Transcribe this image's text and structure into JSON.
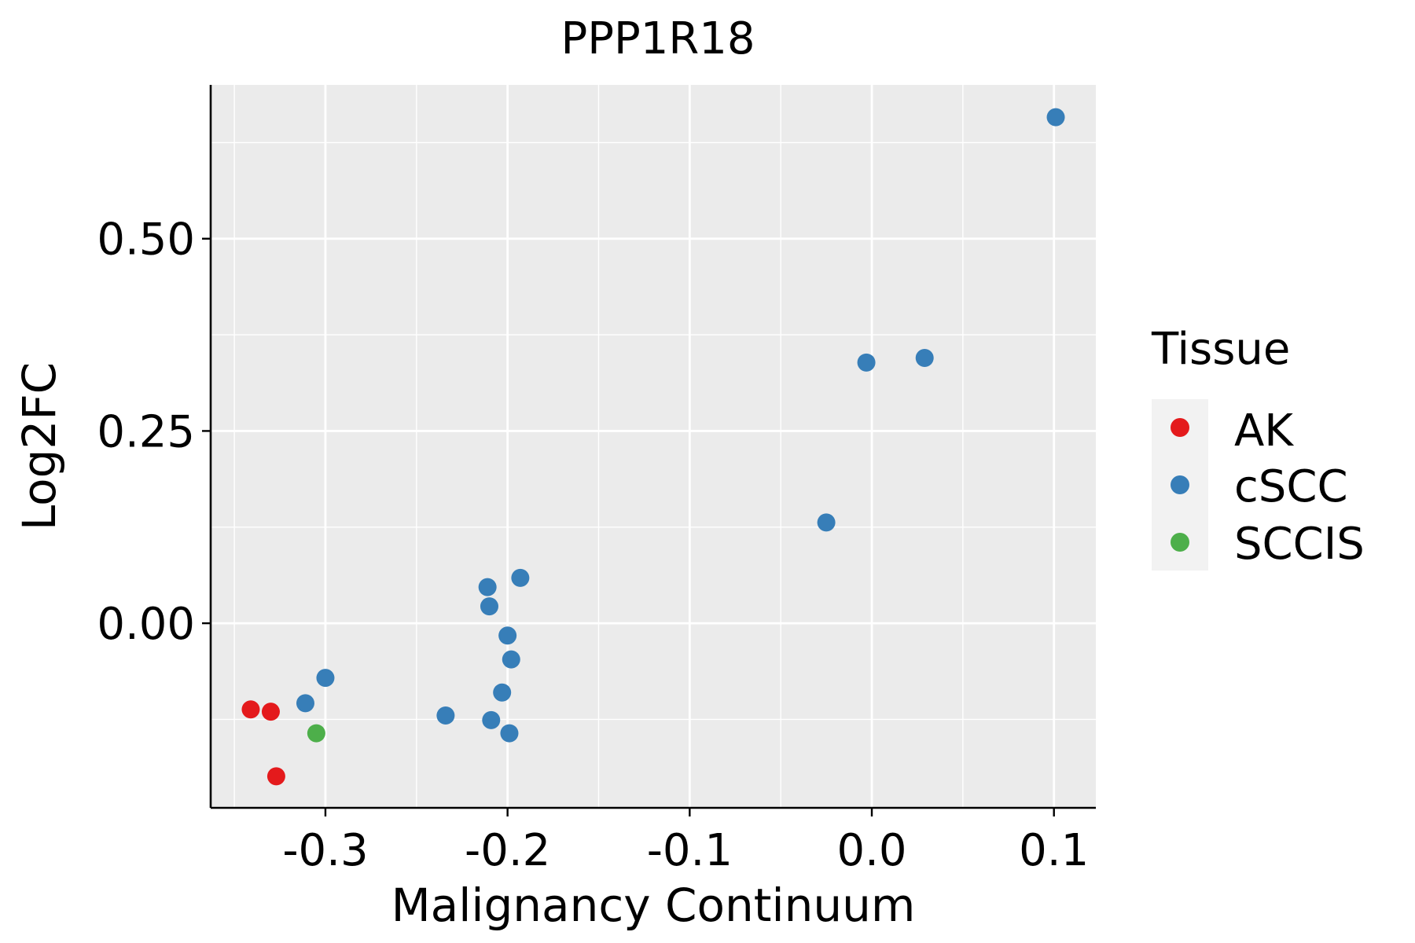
{
  "chart_data": {
    "type": "scatter",
    "title": "PPP1R18",
    "xlabel": "Malignancy Continuum",
    "ylabel": "Log2FC",
    "xlim": [
      -0.363,
      0.123
    ],
    "ylim": [
      -0.24,
      0.7
    ],
    "xticks": [
      -0.3,
      -0.2,
      -0.1,
      0.0,
      0.1
    ],
    "xtick_labels": [
      "-0.3",
      "-0.2",
      "-0.1",
      "0.0",
      "0.1"
    ],
    "yticks": [
      0.0,
      0.25,
      0.5
    ],
    "ytick_labels": [
      "0.00",
      "0.25",
      "0.50"
    ],
    "grid": true,
    "legend": {
      "title": "Tissue",
      "position": "right",
      "entries": [
        {
          "label": "AK",
          "color": "#e41a1c"
        },
        {
          "label": "cSCC",
          "color": "#377eb8"
        },
        {
          "label": "SCCIS",
          "color": "#4daf4a"
        }
      ]
    },
    "series": [
      {
        "name": "AK",
        "color": "#e41a1c",
        "points": [
          {
            "x": -0.341,
            "y": -0.112
          },
          {
            "x": -0.33,
            "y": -0.115
          },
          {
            "x": -0.327,
            "y": -0.199
          }
        ]
      },
      {
        "name": "cSCC",
        "color": "#377eb8",
        "points": [
          {
            "x": 0.101,
            "y": 0.658
          },
          {
            "x": 0.029,
            "y": 0.345
          },
          {
            "x": -0.003,
            "y": 0.339
          },
          {
            "x": -0.025,
            "y": 0.131
          },
          {
            "x": -0.193,
            "y": 0.059
          },
          {
            "x": -0.211,
            "y": 0.047
          },
          {
            "x": -0.21,
            "y": 0.022
          },
          {
            "x": -0.2,
            "y": -0.016
          },
          {
            "x": -0.198,
            "y": -0.047
          },
          {
            "x": -0.203,
            "y": -0.09
          },
          {
            "x": -0.3,
            "y": -0.071
          },
          {
            "x": -0.311,
            "y": -0.104
          },
          {
            "x": -0.234,
            "y": -0.12
          },
          {
            "x": -0.209,
            "y": -0.126
          },
          {
            "x": -0.199,
            "y": -0.143
          }
        ]
      },
      {
        "name": "SCCIS",
        "color": "#4daf4a",
        "points": [
          {
            "x": -0.305,
            "y": -0.143
          }
        ]
      }
    ]
  }
}
